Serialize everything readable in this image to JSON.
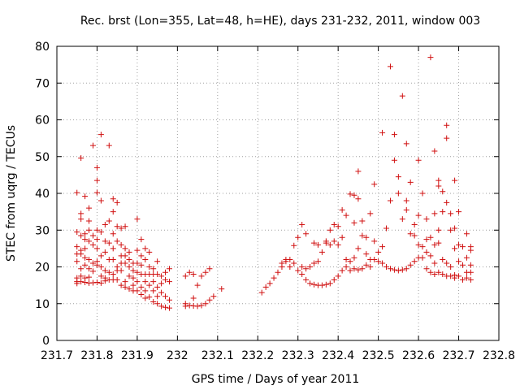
{
  "chart_data": {
    "type": "scatter",
    "title": "Rec. brst (Lon=355, Lat=48, h=HE), days 231-232, 2011, window 003",
    "xlabel": "GPS time / Days of year 2011",
    "ylabel": "STEC from uqrg / TECUs",
    "xlim": [
      231.7,
      232.8
    ],
    "ylim": [
      0,
      80
    ],
    "xticks": [
      "231.7",
      "231.8",
      "231.9",
      "232",
      "232.1",
      "232.2",
      "232.3",
      "232.4",
      "232.5",
      "232.6",
      "232.7",
      "232.8"
    ],
    "yticks": [
      "0",
      "10",
      "20",
      "30",
      "40",
      "50",
      "60",
      "70",
      "80"
    ],
    "grid": true,
    "marker": "+",
    "color": "#d01010",
    "points": [
      [
        231.75,
        40.2
      ],
      [
        231.75,
        29.5
      ],
      [
        231.75,
        25.5
      ],
      [
        231.75,
        23.5
      ],
      [
        231.75,
        21.5
      ],
      [
        231.75,
        17
      ],
      [
        231.75,
        16
      ],
      [
        231.75,
        15.5
      ],
      [
        231.76,
        49.6
      ],
      [
        231.76,
        34.5
      ],
      [
        231.76,
        33
      ],
      [
        231.76,
        28.5
      ],
      [
        231.76,
        24.5
      ],
      [
        231.76,
        23.5
      ],
      [
        231.76,
        19.5
      ],
      [
        231.76,
        17.5
      ],
      [
        231.76,
        16
      ],
      [
        231.77,
        39.2
      ],
      [
        231.77,
        29
      ],
      [
        231.77,
        27.5
      ],
      [
        231.77,
        25
      ],
      [
        231.77,
        22.5
      ],
      [
        231.77,
        20.5
      ],
      [
        231.77,
        17
      ],
      [
        231.77,
        15.8
      ],
      [
        231.78,
        36
      ],
      [
        231.78,
        32.5
      ],
      [
        231.78,
        30
      ],
      [
        231.78,
        27
      ],
      [
        231.78,
        22
      ],
      [
        231.78,
        19.5
      ],
      [
        231.78,
        17.2
      ],
      [
        231.78,
        15.6
      ],
      [
        231.79,
        53
      ],
      [
        231.79,
        28.5
      ],
      [
        231.79,
        26
      ],
      [
        231.79,
        21
      ],
      [
        231.79,
        18.8
      ],
      [
        231.79,
        15.7
      ],
      [
        231.8,
        47
      ],
      [
        231.8,
        43.5
      ],
      [
        231.8,
        40.2
      ],
      [
        231.8,
        30
      ],
      [
        231.8,
        27.5
      ],
      [
        231.8,
        25
      ],
      [
        231.8,
        21.5
      ],
      [
        231.8,
        20.5
      ],
      [
        231.8,
        15.8
      ],
      [
        231.81,
        56
      ],
      [
        231.81,
        38
      ],
      [
        231.81,
        29.5
      ],
      [
        231.81,
        23
      ],
      [
        231.81,
        20
      ],
      [
        231.81,
        17.5
      ],
      [
        231.81,
        15.6
      ],
      [
        231.82,
        31.5
      ],
      [
        231.82,
        27
      ],
      [
        231.82,
        24
      ],
      [
        231.82,
        19
      ],
      [
        231.82,
        17
      ],
      [
        231.82,
        16.2
      ],
      [
        231.83,
        53
      ],
      [
        231.83,
        32.5
      ],
      [
        231.83,
        26.5
      ],
      [
        231.83,
        22
      ],
      [
        231.83,
        18.5
      ],
      [
        231.83,
        16.5
      ],
      [
        231.84,
        38.5
      ],
      [
        231.84,
        35
      ],
      [
        231.84,
        29
      ],
      [
        231.84,
        25
      ],
      [
        231.84,
        22
      ],
      [
        231.84,
        18
      ],
      [
        231.84,
        16.5
      ],
      [
        231.85,
        37.5
      ],
      [
        231.85,
        31
      ],
      [
        231.85,
        27
      ],
      [
        231.85,
        20
      ],
      [
        231.85,
        19
      ],
      [
        231.85,
        16.5
      ],
      [
        231.86,
        30.5
      ],
      [
        231.86,
        26
      ],
      [
        231.86,
        23
      ],
      [
        231.86,
        21
      ],
      [
        231.86,
        19
      ],
      [
        231.86,
        15
      ],
      [
        231.87,
        31
      ],
      [
        231.87,
        25
      ],
      [
        231.87,
        23
      ],
      [
        231.87,
        21
      ],
      [
        231.87,
        16
      ],
      [
        231.87,
        14.5
      ],
      [
        231.88,
        24
      ],
      [
        231.88,
        22
      ],
      [
        231.88,
        20
      ],
      [
        231.88,
        17.5
      ],
      [
        231.88,
        14
      ],
      [
        231.89,
        21
      ],
      [
        231.89,
        19
      ],
      [
        231.89,
        17
      ],
      [
        231.89,
        15
      ],
      [
        231.89,
        13.5
      ],
      [
        231.9,
        33
      ],
      [
        231.9,
        24.5
      ],
      [
        231.9,
        21
      ],
      [
        231.9,
        18.5
      ],
      [
        231.9,
        16
      ],
      [
        231.9,
        13.5
      ],
      [
        231.91,
        27.5
      ],
      [
        231.91,
        23
      ],
      [
        231.91,
        20.5
      ],
      [
        231.91,
        18
      ],
      [
        231.91,
        14.5
      ],
      [
        231.91,
        12.5
      ],
      [
        231.92,
        25
      ],
      [
        231.92,
        22
      ],
      [
        231.92,
        18
      ],
      [
        231.92,
        16
      ],
      [
        231.92,
        13.5
      ],
      [
        231.92,
        11.5
      ],
      [
        231.93,
        24
      ],
      [
        231.93,
        20
      ],
      [
        231.93,
        18
      ],
      [
        231.93,
        15
      ],
      [
        231.93,
        11.8
      ],
      [
        231.94,
        19.5
      ],
      [
        231.94,
        18
      ],
      [
        231.94,
        16
      ],
      [
        231.94,
        13.5
      ],
      [
        231.94,
        10.5
      ],
      [
        231.95,
        21.5
      ],
      [
        231.95,
        18
      ],
      [
        231.95,
        14.5
      ],
      [
        231.95,
        12
      ],
      [
        231.95,
        10
      ],
      [
        231.96,
        17.5
      ],
      [
        231.96,
        15.5
      ],
      [
        231.96,
        13
      ],
      [
        231.96,
        9.3
      ],
      [
        231.97,
        18.5
      ],
      [
        231.97,
        16.5
      ],
      [
        231.97,
        12
      ],
      [
        231.97,
        9
      ],
      [
        231.98,
        19.5
      ],
      [
        231.98,
        16
      ],
      [
        231.98,
        11
      ],
      [
        231.98,
        8.8
      ],
      [
        232.02,
        17.5
      ],
      [
        232.02,
        10
      ],
      [
        232.02,
        9.3
      ],
      [
        232.03,
        18.5
      ],
      [
        232.03,
        9.5
      ],
      [
        232.04,
        18
      ],
      [
        232.04,
        11.5
      ],
      [
        232.04,
        9.4
      ],
      [
        232.05,
        15
      ],
      [
        232.05,
        9.3
      ],
      [
        232.06,
        17.5
      ],
      [
        232.06,
        9.5
      ],
      [
        232.07,
        18.5
      ],
      [
        232.07,
        10
      ],
      [
        232.08,
        19.5
      ],
      [
        232.08,
        11
      ],
      [
        232.09,
        12
      ],
      [
        232.11,
        14
      ],
      [
        232.21,
        13
      ],
      [
        232.22,
        14.5
      ],
      [
        232.23,
        15.5
      ],
      [
        232.24,
        17
      ],
      [
        232.25,
        18.5
      ],
      [
        232.26,
        21
      ],
      [
        232.26,
        20
      ],
      [
        232.27,
        22
      ],
      [
        232.27,
        21.5
      ],
      [
        232.28,
        22
      ],
      [
        232.28,
        20
      ],
      [
        232.29,
        25.8
      ],
      [
        232.29,
        21
      ],
      [
        232.3,
        28
      ],
      [
        232.3,
        19
      ],
      [
        232.31,
        31.5
      ],
      [
        232.31,
        20
      ],
      [
        232.31,
        18
      ],
      [
        232.32,
        29
      ],
      [
        232.32,
        19.5
      ],
      [
        232.32,
        16.5
      ],
      [
        232.33,
        20
      ],
      [
        232.33,
        15.5
      ],
      [
        232.34,
        26.5
      ],
      [
        232.34,
        21
      ],
      [
        232.34,
        15.2
      ],
      [
        232.35,
        26
      ],
      [
        232.35,
        21.5
      ],
      [
        232.35,
        15
      ],
      [
        232.36,
        24
      ],
      [
        232.36,
        15
      ],
      [
        232.37,
        27
      ],
      [
        232.37,
        26.5
      ],
      [
        232.37,
        15.2
      ],
      [
        232.38,
        30
      ],
      [
        232.38,
        26
      ],
      [
        232.38,
        15.5
      ],
      [
        232.39,
        31.5
      ],
      [
        232.39,
        27
      ],
      [
        232.39,
        16.5
      ],
      [
        232.4,
        31
      ],
      [
        232.4,
        26
      ],
      [
        232.4,
        17.5
      ],
      [
        232.41,
        35.5
      ],
      [
        232.41,
        28
      ],
      [
        232.41,
        19
      ],
      [
        232.42,
        34
      ],
      [
        232.42,
        22
      ],
      [
        232.42,
        20
      ],
      [
        232.43,
        39.8
      ],
      [
        232.43,
        21.5
      ],
      [
        232.43,
        19
      ],
      [
        232.44,
        39.5
      ],
      [
        232.44,
        32
      ],
      [
        232.44,
        22.5
      ],
      [
        232.44,
        19.5
      ],
      [
        232.45,
        46
      ],
      [
        232.45,
        38.5
      ],
      [
        232.45,
        25
      ],
      [
        232.45,
        19.2
      ],
      [
        232.46,
        32.5
      ],
      [
        232.46,
        28.5
      ],
      [
        232.46,
        19.5
      ],
      [
        232.47,
        28
      ],
      [
        232.47,
        23.5
      ],
      [
        232.47,
        20.5
      ],
      [
        232.48,
        34.5
      ],
      [
        232.48,
        22
      ],
      [
        232.48,
        20
      ],
      [
        232.49,
        42.5
      ],
      [
        232.49,
        27
      ],
      [
        232.49,
        22
      ],
      [
        232.5,
        24
      ],
      [
        232.5,
        21.5
      ],
      [
        232.51,
        56.5
      ],
      [
        232.51,
        25.5
      ],
      [
        232.51,
        21
      ],
      [
        232.52,
        30.5
      ],
      [
        232.52,
        20
      ],
      [
        232.53,
        74.5
      ],
      [
        232.53,
        38
      ],
      [
        232.53,
        19.5
      ],
      [
        232.54,
        56
      ],
      [
        232.54,
        49
      ],
      [
        232.54,
        19.2
      ],
      [
        232.55,
        44.5
      ],
      [
        232.55,
        40
      ],
      [
        232.55,
        19
      ],
      [
        232.56,
        66.5
      ],
      [
        232.56,
        33
      ],
      [
        232.56,
        19.2
      ],
      [
        232.57,
        53.5
      ],
      [
        232.57,
        38
      ],
      [
        232.57,
        35.5
      ],
      [
        232.57,
        19.5
      ],
      [
        232.58,
        43
      ],
      [
        232.58,
        29
      ],
      [
        232.58,
        20.5
      ],
      [
        232.59,
        31.5
      ],
      [
        232.59,
        28.5
      ],
      [
        232.59,
        21.5
      ],
      [
        232.6,
        49
      ],
      [
        232.6,
        34
      ],
      [
        232.6,
        26
      ],
      [
        232.6,
        22.5
      ],
      [
        232.61,
        40
      ],
      [
        232.61,
        25.5
      ],
      [
        232.61,
        22.5
      ],
      [
        232.62,
        33
      ],
      [
        232.62,
        27.5
      ],
      [
        232.62,
        24
      ],
      [
        232.62,
        19.5
      ],
      [
        232.63,
        77
      ],
      [
        232.63,
        28
      ],
      [
        232.63,
        23
      ],
      [
        232.63,
        18.5
      ],
      [
        232.64,
        51.5
      ],
      [
        232.64,
        34.5
      ],
      [
        232.64,
        26
      ],
      [
        232.64,
        21
      ],
      [
        232.64,
        18
      ],
      [
        232.65,
        43.5
      ],
      [
        232.65,
        42
      ],
      [
        232.65,
        30
      ],
      [
        232.65,
        26.5
      ],
      [
        232.65,
        18.5
      ],
      [
        232.66,
        40.5
      ],
      [
        232.66,
        35
      ],
      [
        232.66,
        22
      ],
      [
        232.66,
        18
      ],
      [
        232.67,
        58.5
      ],
      [
        232.67,
        55
      ],
      [
        232.67,
        37.5
      ],
      [
        232.67,
        21
      ],
      [
        232.67,
        17.5
      ],
      [
        232.68,
        34.5
      ],
      [
        232.68,
        30
      ],
      [
        232.68,
        20
      ],
      [
        232.68,
        17.5
      ],
      [
        232.69,
        43.5
      ],
      [
        232.69,
        30.5
      ],
      [
        232.69,
        25
      ],
      [
        232.69,
        17.8
      ],
      [
        232.69,
        17
      ],
      [
        232.7,
        35
      ],
      [
        232.7,
        26
      ],
      [
        232.7,
        21.5
      ],
      [
        232.7,
        17.5
      ],
      [
        232.71,
        25.5
      ],
      [
        232.71,
        20.5
      ],
      [
        232.71,
        16.5
      ],
      [
        232.72,
        29
      ],
      [
        232.72,
        22.5
      ],
      [
        232.72,
        18.5
      ],
      [
        232.72,
        17
      ],
      [
        232.73,
        25.5
      ],
      [
        232.73,
        24.5
      ],
      [
        232.73,
        20.5
      ],
      [
        232.73,
        18.5
      ],
      [
        232.73,
        16.5
      ]
    ]
  }
}
